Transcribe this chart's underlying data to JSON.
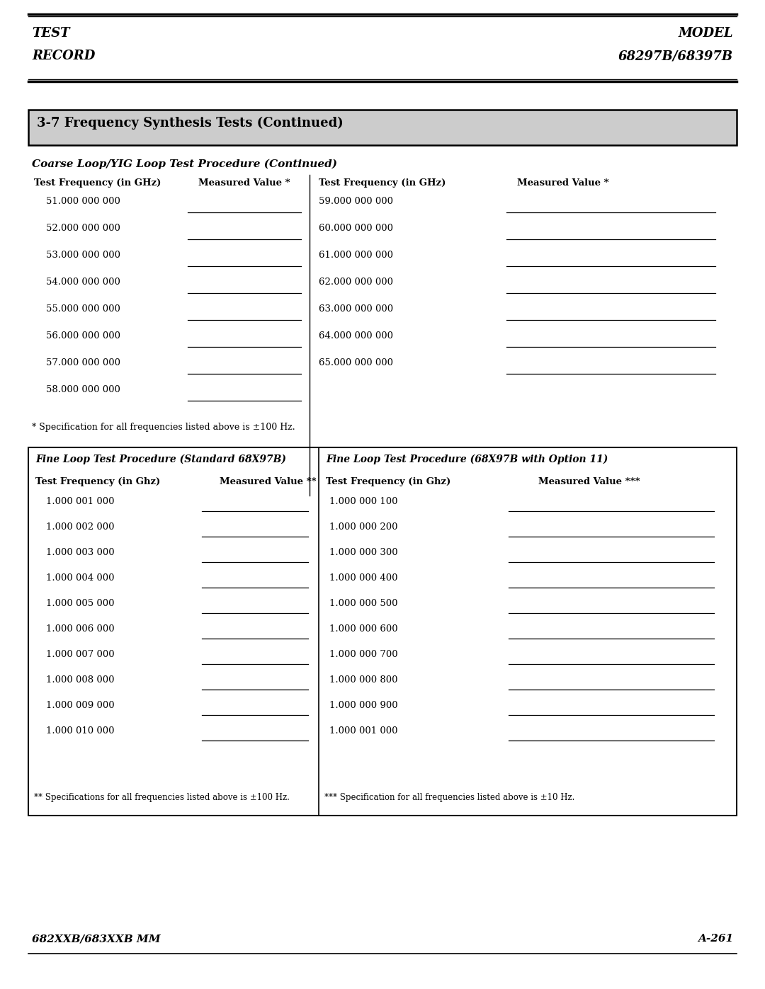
{
  "header_left": [
    "TEST",
    "RECORD"
  ],
  "header_right": [
    "MODEL",
    "68297B/68397B"
  ],
  "section_title": "3-7 Frequency Synthesis Tests (Continued)",
  "coarse_subtitle": "Coarse Loop/YIG Loop Test Procedure (Continued)",
  "coarse_col_headers": [
    "Test Frequency (in GHz)",
    "Measured Value *",
    "Test Frequency (in GHz)",
    "Measured Value *"
  ],
  "coarse_left_freqs": [
    "51.000 000 000",
    "52.000 000 000",
    "53.000 000 000",
    "54.000 000 000",
    "55.000 000 000",
    "56.000 000 000",
    "57.000 000 000",
    "58.000 000 000"
  ],
  "coarse_right_freqs": [
    "59.000 000 000",
    "60.000 000 000",
    "61.000 000 000",
    "62.000 000 000",
    "63.000 000 000",
    "64.000 000 000",
    "65.000 000 000"
  ],
  "coarse_footnote": "* Specification for all frequencies listed above is ±100 Hz.",
  "fine_left_title": "Fine Loop Test Procedure (Standard 68X97B)",
  "fine_right_title": "Fine Loop Test Procedure (68X97B with Option 11)",
  "fine_left_col_headers": [
    "Test Frequency (in Ghz)",
    "Measured Value **"
  ],
  "fine_right_col_headers": [
    "Test Frequency (in Ghz)",
    "Measured Value ***"
  ],
  "fine_left_freqs": [
    "1.000 001 000",
    "1.000 002 000",
    "1.000 003 000",
    "1.000 004 000",
    "1.000 005 000",
    "1.000 006 000",
    "1.000 007 000",
    "1.000 008 000",
    "1.000 009 000",
    "1.000 010 000"
  ],
  "fine_right_freqs": [
    "1.000 000 100",
    "1.000 000 200",
    "1.000 000 300",
    "1.000 000 400",
    "1.000 000 500",
    "1.000 000 600",
    "1.000 000 700",
    "1.000 000 800",
    "1.000 000 900",
    "1.000 001 000"
  ],
  "fine_left_footnote": "** Specifications for all frequencies listed above is ±100 Hz.",
  "fine_right_footnote": "*** Specification for all frequencies listed above is ±10 Hz.",
  "footer_left": "682XXB/683XXB MM",
  "footer_right": "A-261",
  "bg_color": "#ffffff"
}
